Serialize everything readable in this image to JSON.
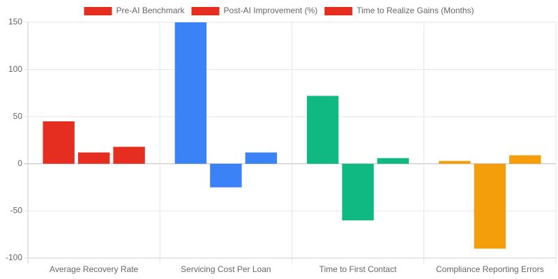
{
  "chart_data": {
    "type": "bar",
    "categories": [
      "Average Recovery Rate",
      "Servicing Cost Per Loan",
      "Time to First Contact",
      "Compliance Reporting Errors"
    ],
    "series": [
      {
        "name": "Pre-AI Benchmark",
        "color": [
          "#e52e20",
          "#3b82f6",
          "#10b981",
          "#f59e0b"
        ],
        "values": [
          45,
          150,
          72,
          3
        ]
      },
      {
        "name": "Post-AI Improvement (%)",
        "color": [
          "#e52e20",
          "#3b82f6",
          "#10b981",
          "#f59e0b"
        ],
        "values": [
          12,
          -25,
          -60,
          -90
        ]
      },
      {
        "name": "Time to Realize Gains (Months)",
        "color": [
          "#e52e20",
          "#3b82f6",
          "#10b981",
          "#f59e0b"
        ],
        "values": [
          18,
          12,
          6,
          9
        ]
      }
    ],
    "ylim": [
      -100,
      150
    ],
    "yticks": [
      -100,
      -50,
      0,
      50,
      100,
      150
    ],
    "grid": true,
    "legend": "top"
  }
}
